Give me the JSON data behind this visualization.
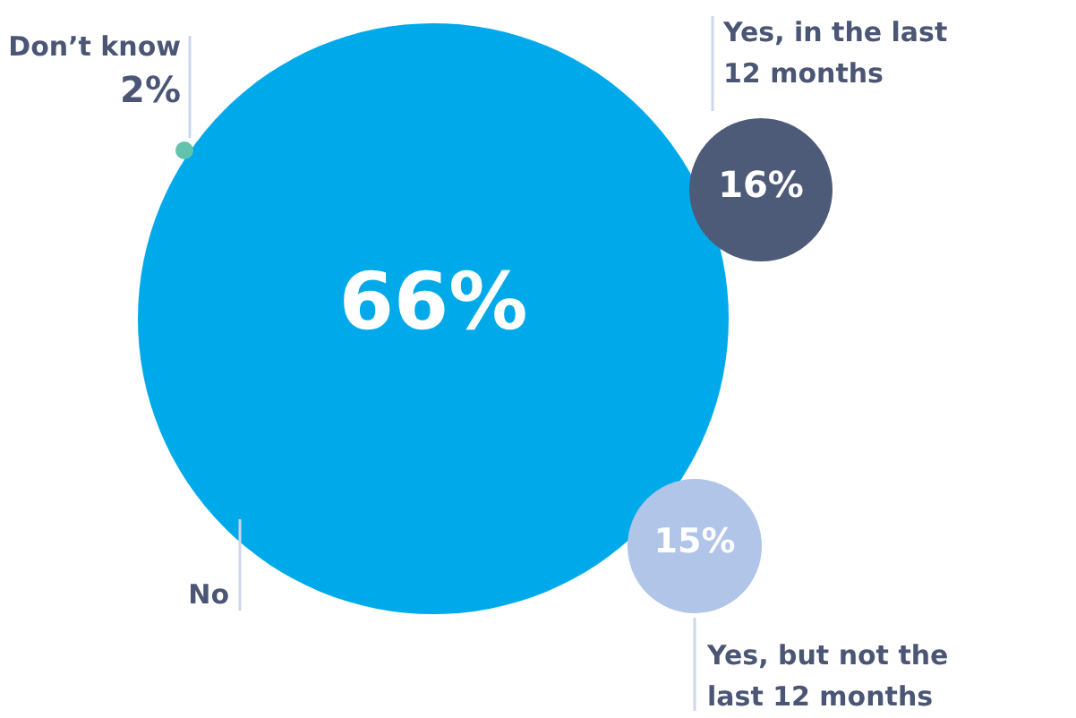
{
  "chart_data": {
    "type": "other",
    "categories": [
      "No",
      "Yes, in the last 12 months",
      "Yes, but not the last 12 months",
      "Don’t know"
    ],
    "values": [
      66,
      16,
      15,
      2
    ],
    "value_labels": [
      "66%",
      "16%",
      "15%",
      "2%"
    ],
    "colors": [
      "#00aaea",
      "#4d5a78",
      "#b1c5e8",
      "#63c2ae"
    ]
  }
}
